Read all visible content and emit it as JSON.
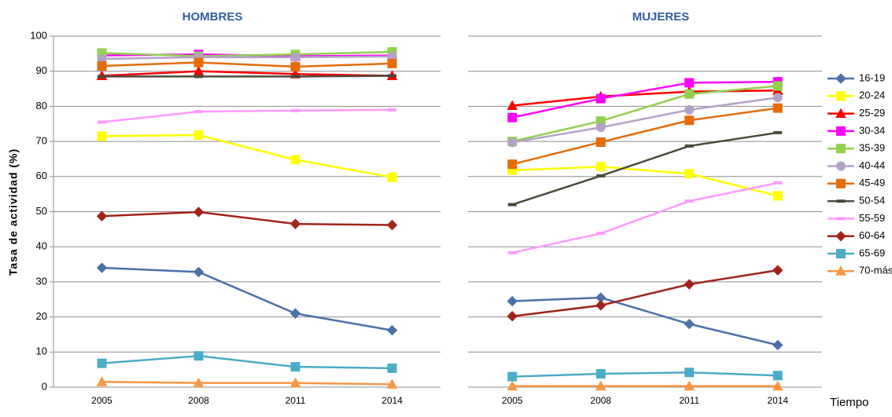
{
  "chart_data": [
    {
      "type": "line",
      "title": "HOMBRES",
      "y_label": "Tasa de actividad  (%)",
      "categories": [
        "2005",
        "2008",
        "2011",
        "2014"
      ],
      "ylim": [
        0,
        100
      ],
      "yticks": [
        0,
        10,
        20,
        30,
        40,
        50,
        60,
        70,
        80,
        90,
        100
      ],
      "grid": true,
      "series": [
        {
          "name": "16-19",
          "color": "#4a70a8",
          "marker": "diamond",
          "values": [
            34,
            32.8,
            21,
            16.2
          ]
        },
        {
          "name": "20-24",
          "color": "#ffff00",
          "marker": "square",
          "values": [
            71.5,
            71.8,
            64.8,
            59.8
          ]
        },
        {
          "name": "25-29",
          "color": "#ff0000",
          "marker": "triangle",
          "values": [
            88.7,
            90,
            89.2,
            88.7
          ]
        },
        {
          "name": "30-34",
          "color": "#ff00ff",
          "marker": "square",
          "values": [
            94.5,
            94.8,
            94.3,
            94.5
          ]
        },
        {
          "name": "35-39",
          "color": "#92d050",
          "marker": "square",
          "values": [
            95.2,
            94.3,
            94.8,
            95.5
          ]
        },
        {
          "name": "40-44",
          "color": "#b3a2c7",
          "marker": "circle",
          "values": [
            93.5,
            94,
            94,
            94.2
          ]
        },
        {
          "name": "45-49",
          "color": "#e46c0a",
          "marker": "square",
          "values": [
            91.5,
            92.5,
            91.3,
            92.2
          ]
        },
        {
          "name": "50-54",
          "color": "#4a4a3a",
          "marker": "dash",
          "values": [
            88.5,
            88.5,
            88.5,
            88.7
          ]
        },
        {
          "name": "55-59",
          "color": "#ff99ff",
          "marker": "dash",
          "values": [
            75.5,
            78.5,
            78.8,
            79
          ]
        },
        {
          "name": "60-64",
          "color": "#a0241a",
          "marker": "diamond",
          "values": [
            48.7,
            49.9,
            46.5,
            46.2
          ]
        },
        {
          "name": "65-69",
          "color": "#4bacc6",
          "marker": "square",
          "values": [
            6.8,
            8.9,
            5.8,
            5.4
          ]
        },
        {
          "name": "70-más",
          "color": "#f79646",
          "marker": "triangle",
          "values": [
            1.5,
            1.2,
            1.2,
            0.8
          ]
        }
      ]
    },
    {
      "type": "line",
      "title": "MUJERES",
      "x_label": "Tiempo",
      "categories": [
        "2005",
        "2008",
        "2011",
        "2014"
      ],
      "ylim": [
        0,
        100
      ],
      "yticks": [
        0,
        10,
        20,
        30,
        40,
        50,
        60,
        70,
        80,
        90,
        100
      ],
      "grid": true,
      "series": [
        {
          "values": [
            24.5,
            25.5,
            18,
            12
          ]
        },
        {
          "values": [
            61.8,
            62.8,
            60.8,
            54.5
          ]
        },
        {
          "values": [
            80.2,
            82.8,
            84.2,
            84.5
          ]
        },
        {
          "values": [
            76.8,
            82.2,
            86.7,
            87
          ]
        },
        {
          "values": [
            70,
            75.8,
            83.5,
            85.8
          ]
        },
        {
          "values": [
            69.7,
            74,
            79,
            82.5
          ]
        },
        {
          "values": [
            63.5,
            69.8,
            76,
            79.5
          ]
        },
        {
          "values": [
            52,
            60.2,
            68.7,
            72.5
          ]
        },
        {
          "values": [
            38.3,
            43.8,
            53,
            58.2
          ]
        },
        {
          "values": [
            20.2,
            23.3,
            29.3,
            33.3
          ]
        },
        {
          "values": [
            3,
            3.8,
            4.2,
            3.3
          ]
        },
        {
          "values": [
            0.3,
            0.3,
            0.3,
            0.3
          ]
        }
      ]
    }
  ]
}
